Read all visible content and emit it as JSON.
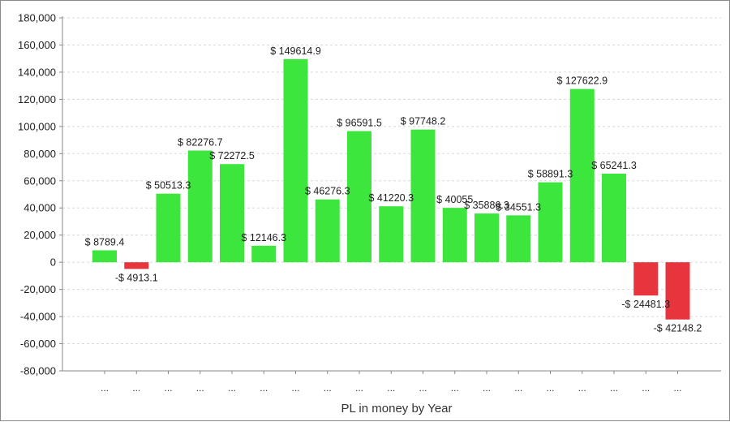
{
  "chart_data": {
    "type": "bar",
    "title": "",
    "xlabel": "PL in money by Year",
    "ylabel": "",
    "ylim": [
      -80000,
      180000
    ],
    "y_ticks": [
      180000,
      160000,
      140000,
      120000,
      100000,
      80000,
      60000,
      40000,
      20000,
      0,
      -20000,
      -40000,
      -60000,
      -80000
    ],
    "y_tick_labels": [
      "180,000",
      "160,000",
      "140,000",
      "120,000",
      "100,000",
      "80,000",
      "60,000",
      "40,000",
      "20,000",
      "0",
      "-20,000",
      "-40,000",
      "-60,000",
      "-80,000"
    ],
    "grid": true,
    "legend": "none",
    "categories": [
      "...",
      "...",
      "...",
      "...",
      "...",
      "...",
      "...",
      "...",
      "...",
      "...",
      "...",
      "...",
      "...",
      "...",
      "...",
      "...",
      "...",
      "...",
      "..."
    ],
    "values": [
      8789.4,
      -4913.1,
      50513.3,
      82276.7,
      72272.5,
      12146.3,
      149614.9,
      46276.3,
      96591.5,
      41220.3,
      97748.2,
      40055,
      35886.3,
      34551.3,
      58891.3,
      127622.9,
      65241.3,
      -24481.3,
      -42148.2
    ],
    "data_labels": [
      "$ 8789.4",
      "-$ 4913.1",
      "$ 50513.3",
      "$ 82276.7",
      "$ 72272.5",
      "$ 12146.3",
      "$ 149614.9",
      "$ 46276.3",
      "$ 96591.5",
      "$ 41220.3",
      "$ 97748.2",
      "$ 40055",
      "$ 35886.3",
      "$ 34551.3",
      "$ 58891.3",
      "$ 127622.9",
      "$ 65241.3",
      "-$ 24481.3",
      "-$ 42148.2"
    ],
    "colors": {
      "positive": "#3de63d",
      "negative": "#e8343c",
      "grid": "#d8d8d8",
      "axis": "#888888",
      "text": "#1e1e1e"
    }
  }
}
